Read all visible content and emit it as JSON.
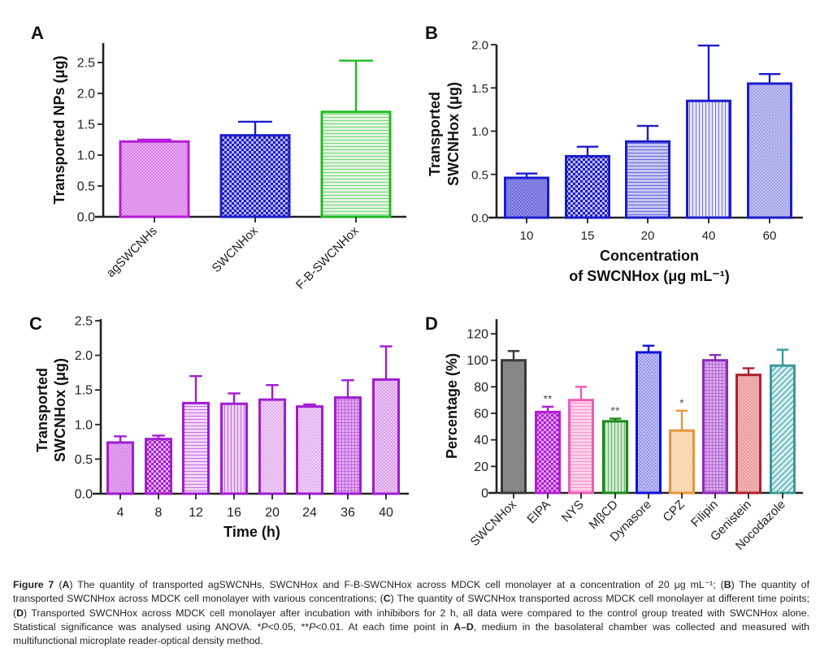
{
  "chart_data": [
    {
      "panel": "A",
      "type": "bar",
      "title": "",
      "ylabel": "Transported NPs (μg)",
      "xlabel": "",
      "ylim": [
        0,
        2.8
      ],
      "yticks": [
        "0.0",
        "0.5",
        "1.0",
        "1.5",
        "2.0",
        "2.5"
      ],
      "ytick_values": [
        0,
        0.5,
        1.0,
        1.5,
        2.0,
        2.5
      ],
      "categories": [
        "agSWCNHs",
        "SWCNHox",
        "F-B-SWCNHox"
      ],
      "values": [
        1.22,
        1.32,
        1.7
      ],
      "error_upper": [
        1.25,
        1.54,
        2.53
      ],
      "colors": [
        "#b41ed8",
        "#1c1ccc",
        "#22bb22"
      ],
      "fills": [
        "#e8a6f0",
        "#b8b8f0",
        "#e2f5e2"
      ],
      "patterns": [
        "dots",
        "checker",
        "hlines"
      ],
      "xtick_rotation": "45deg",
      "grid": false
    },
    {
      "panel": "B",
      "type": "bar",
      "title": "",
      "ylabel_lines": [
        "Transported",
        "SWCNHox (μg)"
      ],
      "xlabel_lines": [
        "Concentration",
        "of SWCNHox (μg mL⁻¹)"
      ],
      "ylim": [
        0,
        2.0
      ],
      "yticks": [
        "0.0",
        "0.5",
        "1.0",
        "1.5",
        "2.0"
      ],
      "ytick_values": [
        0,
        0.5,
        1.0,
        1.5,
        2.0
      ],
      "categories": [
        "10",
        "15",
        "20",
        "40",
        "60"
      ],
      "values": [
        0.46,
        0.71,
        0.88,
        1.35,
        1.55
      ],
      "error_upper": [
        0.51,
        0.82,
        1.06,
        1.99,
        1.66
      ],
      "colors": [
        "#1c1ccc",
        "#1c1ccc",
        "#1c1ccc",
        "#1c1ccc",
        "#1c1ccc"
      ],
      "fills": [
        "#8c8ce6",
        "#c0c0f0",
        "#c6c6f2",
        "#e6e6fa",
        "#b8b8ee"
      ],
      "patterns": [
        "dots",
        "checker",
        "hlines",
        "vlines",
        "fine"
      ],
      "grid": false
    },
    {
      "panel": "C",
      "type": "bar",
      "title": "",
      "ylabel_lines": [
        "Transported",
        "SWCNHox (μg)"
      ],
      "xlabel": "Time (h)",
      "ylim": [
        0,
        2.5
      ],
      "yticks": [
        "0.0",
        "0.5",
        "1.0",
        "1.5",
        "2.0",
        "2.5"
      ],
      "ytick_values": [
        0,
        0.5,
        1.0,
        1.5,
        2.0,
        2.5
      ],
      "categories": [
        "4",
        "8",
        "12",
        "16",
        "20",
        "24",
        "36",
        "40"
      ],
      "values": [
        0.74,
        0.79,
        1.31,
        1.3,
        1.36,
        1.26,
        1.39,
        1.65
      ],
      "error_upper": [
        0.83,
        0.84,
        1.7,
        1.45,
        1.57,
        1.29,
        1.64,
        2.13
      ],
      "colors": [
        "#a21cd2",
        "#a21cd2",
        "#a21cd2",
        "#a21cd2",
        "#a21cd2",
        "#a21cd2",
        "#a21cd2",
        "#a21cd2"
      ],
      "fills": [
        "#de9cee",
        "#e6b4f2",
        "#f2d6f8",
        "#f0d0f6",
        "#ecc8f4",
        "#ecc8f4",
        "#e0aaee",
        "#ecc8f4"
      ],
      "patterns": [
        "fine",
        "checker",
        "hlines",
        "vlines",
        "fine",
        "fine",
        "grid",
        "dots"
      ],
      "grid": false
    },
    {
      "panel": "D",
      "type": "bar",
      "title": "",
      "ylabel": "Percentage (%)",
      "xlabel": "",
      "ylim": [
        0,
        130
      ],
      "yticks": [
        "0",
        "20",
        "40",
        "60",
        "80",
        "100",
        "120"
      ],
      "ytick_values": [
        0,
        20,
        40,
        60,
        80,
        100,
        120
      ],
      "categories": [
        "SWCNHox",
        "EIPA",
        "NYS",
        "MβCD",
        "Dynasore",
        "CPZ",
        "Filipin",
        "Genistein",
        "Nocodazole"
      ],
      "values": [
        100,
        61,
        70,
        54,
        106,
        47,
        100,
        89,
        96
      ],
      "error_upper": [
        107,
        65,
        80,
        56,
        111,
        62,
        104,
        94,
        108
      ],
      "significance": [
        "",
        "**",
        "",
        "**",
        "",
        "*",
        "",
        "",
        ""
      ],
      "colors": [
        "#3a3a3a",
        "#b01ed6",
        "#ee5cb4",
        "#1a8a1a",
        "#1010dd",
        "#e8963a",
        "#8e2cb8",
        "#b02030",
        "#3a9a9a"
      ],
      "fills": [
        "#8a8a8a",
        "#e0a0f0",
        "#fcd2ea",
        "#cfe8cf",
        "#b4b4f0",
        "#f8dcbc",
        "#d8a6ec",
        "#f0b0b0",
        "#d4eef0"
      ],
      "patterns": [
        "fine",
        "checker",
        "hlines",
        "vlines",
        "fine",
        "fine",
        "grid",
        "fine",
        "diag"
      ],
      "xtick_rotation": "45deg",
      "grid": false
    }
  ],
  "caption": {
    "label": "Figure 7",
    "parts": [
      {
        "t": "b",
        "v": "Figure 7"
      },
      {
        "t": "s",
        "v": " ("
      },
      {
        "t": "b",
        "v": "A"
      },
      {
        "t": "s",
        "v": ") The quantity of transported agSWCNHs, SWCNHox and F-B-SWCNHox across MDCK cell monolayer at a concentration of 20 μg mL⁻¹; ("
      },
      {
        "t": "b",
        "v": "B"
      },
      {
        "t": "s",
        "v": ") The quantity of transported SWCNHox across MDCK cell monolayer with various concentrations; ("
      },
      {
        "t": "b",
        "v": "C"
      },
      {
        "t": "s",
        "v": ") The quantity of SWCNHox transported across MDCK cell monolayer at different time points; ("
      },
      {
        "t": "b",
        "v": "D"
      },
      {
        "t": "s",
        "v": ") Transported SWCNHox across MDCK cell monolayer after incubation with inhibibors for 2 h, all data were compared to the control group treated with SWCNHox alone. Statistical significance was analysed using ANOVA. *"
      },
      {
        "t": "i",
        "v": "P"
      },
      {
        "t": "s",
        "v": "<0.05, **"
      },
      {
        "t": "i",
        "v": "P"
      },
      {
        "t": "s",
        "v": "<0.01. At each time point in "
      },
      {
        "t": "b",
        "v": "A–D"
      },
      {
        "t": "s",
        "v": ", medium in the basolateral chamber was collected and measured with multifunctional microplate reader-optical density method."
      }
    ]
  }
}
